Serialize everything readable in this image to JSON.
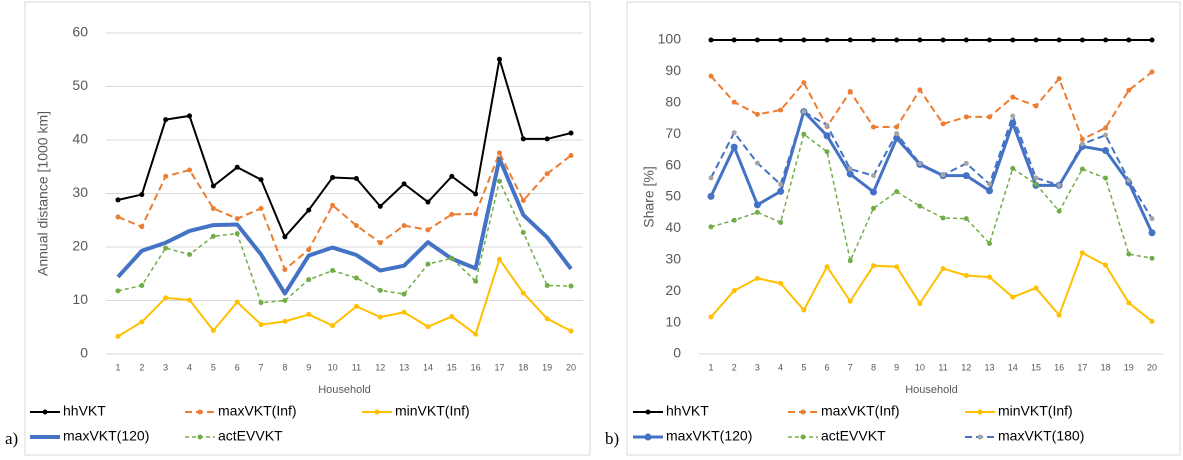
{
  "chart_data": [
    {
      "type": "line",
      "panel_label": "a)",
      "y_label": "Annual distance [1000 km]",
      "x_label": "Household",
      "categories": [
        1,
        2,
        3,
        4,
        5,
        6,
        7,
        8,
        9,
        10,
        11,
        12,
        13,
        14,
        15,
        16,
        17,
        18,
        19,
        20
      ],
      "ylim": [
        0,
        60
      ],
      "yticks": [
        0,
        10,
        20,
        30,
        40,
        50,
        60
      ],
      "grid": true,
      "series": [
        {
          "name": "hhVKT",
          "color": "#000000",
          "width": 2,
          "dash": false,
          "marker": true,
          "values": [
            28.8,
            29.8,
            43.8,
            44.5,
            31.4,
            34.9,
            32.6,
            21.9,
            26.9,
            33.0,
            32.8,
            27.6,
            31.8,
            28.4,
            33.2,
            29.9,
            55.1,
            40.2,
            40.2,
            41.3
          ]
        },
        {
          "name": "maxVKT(Inf)",
          "color": "#ed7d31",
          "width": 2,
          "dash": true,
          "marker": true,
          "values": [
            25.6,
            23.8,
            33.2,
            34.4,
            27.2,
            25.3,
            27.2,
            15.8,
            19.5,
            27.8,
            24.0,
            20.8,
            24.0,
            23.2,
            26.1,
            26.2,
            37.6,
            28.7,
            33.7,
            37.1
          ]
        },
        {
          "name": "minVKT(Inf)",
          "color": "#ffc000",
          "width": 2,
          "dash": false,
          "marker": true,
          "values": [
            3.3,
            6.0,
            10.5,
            10.1,
            4.4,
            9.7,
            5.5,
            6.1,
            7.4,
            5.3,
            8.9,
            6.9,
            7.8,
            5.1,
            7.0,
            3.7,
            17.7,
            11.4,
            6.6,
            4.3
          ]
        },
        {
          "name": "maxVKT(120)",
          "color": "#4472c4",
          "width": 4,
          "dash": false,
          "marker": false,
          "values": [
            14.4,
            19.3,
            20.8,
            23.0,
            24.1,
            24.2,
            18.6,
            11.3,
            18.4,
            19.9,
            18.5,
            15.6,
            16.5,
            20.9,
            17.8,
            16.0,
            36.5,
            26.0,
            21.8,
            15.9
          ]
        },
        {
          "name": "actEVVKT",
          "color": "#70ad47",
          "width": 1.5,
          "dash": true,
          "marker": true,
          "values": [
            11.8,
            12.8,
            19.8,
            18.6,
            22.0,
            22.5,
            9.6,
            10.0,
            13.9,
            15.6,
            14.2,
            11.9,
            11.2,
            16.8,
            17.9,
            13.6,
            32.3,
            22.7,
            12.8,
            12.7
          ]
        }
      ]
    },
    {
      "type": "line",
      "panel_label": "b)",
      "y_label": "Share [%]",
      "x_label": "Household",
      "categories": [
        1,
        2,
        3,
        4,
        5,
        6,
        7,
        8,
        9,
        10,
        11,
        12,
        13,
        14,
        15,
        16,
        17,
        18,
        19,
        20
      ],
      "ylim": [
        0,
        100
      ],
      "yticks": [
        0,
        10,
        20,
        30,
        40,
        50,
        60,
        70,
        80,
        90,
        100
      ],
      "grid": false,
      "series": [
        {
          "name": "hhVKT",
          "color": "#000000",
          "width": 2,
          "dash": false,
          "marker": true,
          "values": [
            100,
            100,
            100,
            100,
            100,
            100,
            100,
            100,
            100,
            100,
            100,
            100,
            100,
            100,
            100,
            100,
            100,
            100,
            100,
            100
          ]
        },
        {
          "name": "maxVKT(Inf)",
          "color": "#ed7d31",
          "width": 2,
          "dash": true,
          "marker": true,
          "values": [
            88.5,
            80.2,
            76.3,
            77.7,
            86.4,
            72.4,
            83.6,
            72.3,
            72.3,
            84.1,
            73.3,
            75.5,
            75.5,
            81.8,
            79.0,
            87.7,
            68.4,
            72.0,
            84.0,
            89.8
          ]
        },
        {
          "name": "minVKT(Inf)",
          "color": "#ffc000",
          "width": 2,
          "dash": false,
          "marker": true,
          "values": [
            11.8,
            20.2,
            24.1,
            22.5,
            14.0,
            27.8,
            16.8,
            28.1,
            27.8,
            16.1,
            27.2,
            25.0,
            24.5,
            18.1,
            21.0,
            12.4,
            32.2,
            28.3,
            16.3,
            10.4
          ]
        },
        {
          "name": "maxVKT(120)",
          "color": "#4472c4",
          "width": 3,
          "dash": false,
          "marker": true,
          "values": [
            50.2,
            65.9,
            47.5,
            51.8,
            77.2,
            69.5,
            57.3,
            51.6,
            68.7,
            60.4,
            56.8,
            56.8,
            52.0,
            73.5,
            53.7,
            53.7,
            66.1,
            64.8,
            54.6,
            38.6
          ]
        },
        {
          "name": "actEVVKT",
          "color": "#70ad47",
          "width": 1.5,
          "dash": true,
          "marker": true,
          "values": [
            40.5,
            42.6,
            45.1,
            41.9,
            70.0,
            64.4,
            29.7,
            46.4,
            51.7,
            47.1,
            43.3,
            43.1,
            35.2,
            59.1,
            54.1,
            45.5,
            58.9,
            56.0,
            31.8,
            30.5
          ]
        },
        {
          "name": "maxVKT(180)",
          "color": "#4472c4",
          "marker_color": "#a5a5a5",
          "width": 2,
          "dash": true,
          "marker": true,
          "values": [
            56.1,
            70.5,
            60.8,
            54.0,
            77.2,
            72.8,
            58.9,
            56.8,
            70.2,
            60.6,
            57.0,
            60.7,
            54.1,
            75.8,
            56.1,
            53.7,
            66.9,
            69.7,
            55.3,
            43.1
          ]
        }
      ]
    }
  ]
}
